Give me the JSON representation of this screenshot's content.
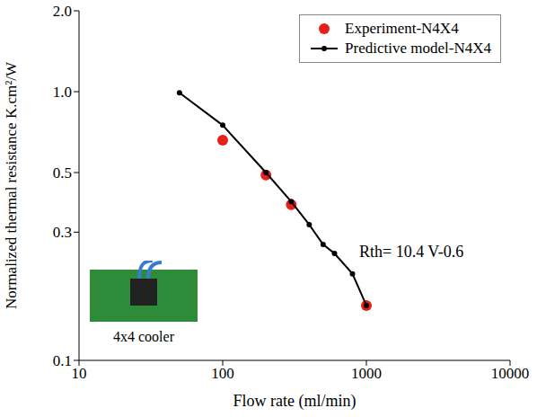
{
  "chart_data": {
    "type": "scatter",
    "x_label": "Flow rate (ml/min)",
    "y_label": "Normalized thermal resistance K.cm²/W",
    "log": true,
    "grid": false,
    "legend": "top right",
    "xlim": [
      10,
      10000
    ],
    "xticks": [
      10,
      100,
      1000,
      10000
    ],
    "ylim": [
      0.1,
      2
    ],
    "yticks": [
      0.1,
      0.3,
      0.5,
      {
        "value": 1,
        "label": "1.0"
      },
      {
        "value": 2,
        "label": "2.0"
      }
    ],
    "series": [
      {
        "name": "Experiment-N4X4",
        "color": "#e8201c",
        "marker": "circle",
        "line_style": "none",
        "x": [
          100,
          200,
          300,
          1000
        ],
        "values": [
          0.66,
          0.49,
          0.38,
          0.16
        ]
      },
      {
        "name": "Predictive model-N4X4",
        "color": "#000000",
        "marker": "circle",
        "line_style": "solid",
        "x": [
          50,
          100,
          200,
          300,
          400,
          500,
          600,
          800,
          1000
        ],
        "values": [
          0.99,
          0.75,
          0.5,
          0.39,
          0.32,
          0.27,
          0.25,
          0.21,
          0.16
        ]
      }
    ],
    "annotations": [
      "Rth= 10.4 V-0.6",
      "4x4 cooler"
    ]
  }
}
